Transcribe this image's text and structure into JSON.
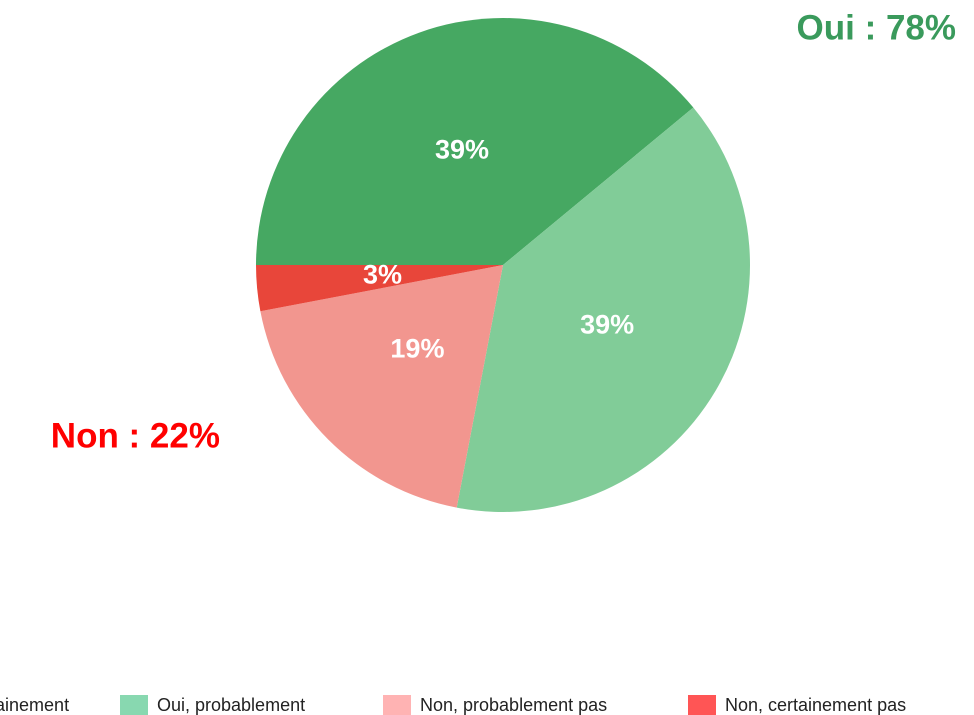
{
  "chart_data": {
    "type": "pie",
    "categories": [
      "Oui, certainement",
      "Oui, probablement",
      "Non, probablement pas",
      "Non, certainement pas"
    ],
    "values": [
      39,
      39,
      19,
      3
    ],
    "value_labels": [
      "39%",
      "39%",
      "19%",
      "3%"
    ],
    "colors": [
      "#46a862",
      "#81cc98",
      "#f2968f",
      "#e8463a"
    ],
    "legend_colors": [
      "#46a862",
      "#88d8b0",
      "#ffb3b3",
      "#ff5555"
    ],
    "annotations": [
      {
        "text": "Oui : 78%",
        "color": "#3a9a5c"
      },
      {
        "text": "Non : 22%",
        "color": "#ff0000"
      }
    ],
    "legend": "bottom"
  }
}
